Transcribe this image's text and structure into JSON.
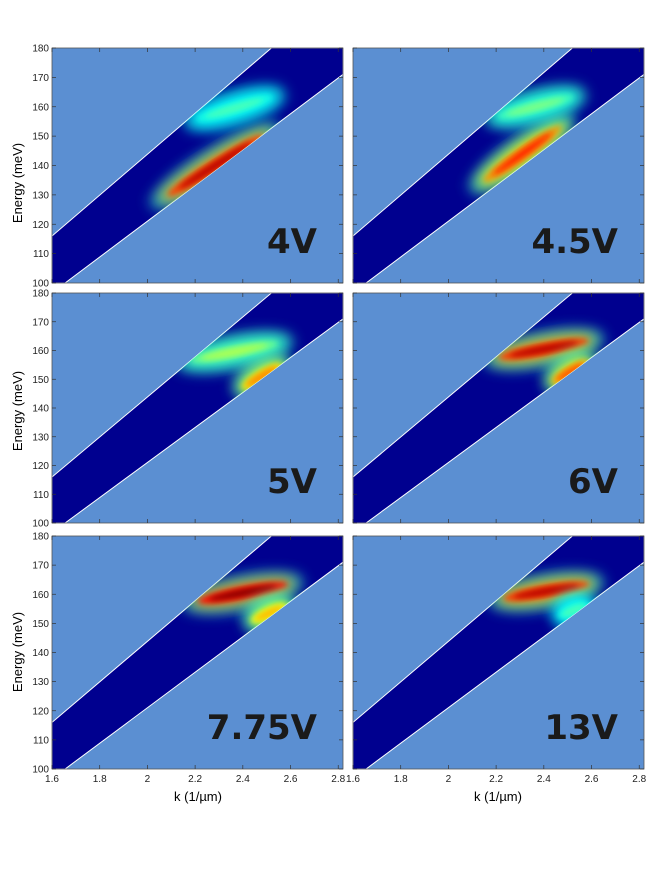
{
  "chart_data": {
    "type": "heatmap",
    "layout": "3 rows x 2 columns of panels sharing axes",
    "xlabel": "k (1/µm)",
    "ylabel": "Energy (meV)",
    "xlim": [
      1.6,
      2.82
    ],
    "ylim": [
      100,
      180
    ],
    "xticks": [
      "1.6",
      "1.8",
      "2",
      "2.2",
      "2.4",
      "2.6",
      "2.8"
    ],
    "yticks": [
      "100",
      "110",
      "120",
      "130",
      "140",
      "150",
      "160",
      "170",
      "180"
    ],
    "colormap": "jet",
    "background_color": "#5b8fd2",
    "band": {
      "upper_edge": [
        [
          1.6,
          116
        ],
        [
          2.52,
          180
        ]
      ],
      "lower_edge": [
        [
          1.655,
          100
        ],
        [
          2.82,
          171
        ]
      ]
    },
    "panels": [
      {
        "label": "4V",
        "features": [
          {
            "x": [
              2.05,
              2.52
            ],
            "y": [
              128,
              152
            ],
            "intensity": 0.95
          },
          {
            "x": [
              2.18,
              2.55
            ],
            "y": [
              155,
              164
            ],
            "intensity": 0.45
          }
        ]
      },
      {
        "label": "4.5V",
        "features": [
          {
            "x": [
              2.12,
              2.5
            ],
            "y": [
              133,
              155
            ],
            "intensity": 0.85
          },
          {
            "x": [
              2.18,
              2.55
            ],
            "y": [
              156,
              164
            ],
            "intensity": 0.5
          }
        ]
      },
      {
        "label": "5V",
        "features": [
          {
            "x": [
              2.15,
              2.58
            ],
            "y": [
              156,
              163
            ],
            "intensity": 0.55
          },
          {
            "x": [
              2.38,
              2.58
            ],
            "y": [
              146,
              156
            ],
            "intensity": 0.75
          }
        ]
      },
      {
        "label": "6V",
        "features": [
          {
            "x": [
              2.18,
              2.62
            ],
            "y": [
              157,
              164
            ],
            "intensity": 0.95
          },
          {
            "x": [
              2.42,
              2.6
            ],
            "y": [
              148,
              157
            ],
            "intensity": 0.8
          }
        ]
      },
      {
        "label": "7.75V",
        "features": [
          {
            "x": [
              2.18,
              2.62
            ],
            "y": [
              157,
              164
            ],
            "intensity": 1.0
          },
          {
            "x": [
              2.42,
              2.6
            ],
            "y": [
              150,
              157
            ],
            "intensity": 0.7
          }
        ]
      },
      {
        "label": "13V",
        "features": [
          {
            "x": [
              2.2,
              2.62
            ],
            "y": [
              158,
              164
            ],
            "intensity": 0.95
          },
          {
            "x": [
              2.45,
              2.6
            ],
            "y": [
              152,
              157
            ],
            "intensity": 0.45
          }
        ]
      }
    ]
  }
}
